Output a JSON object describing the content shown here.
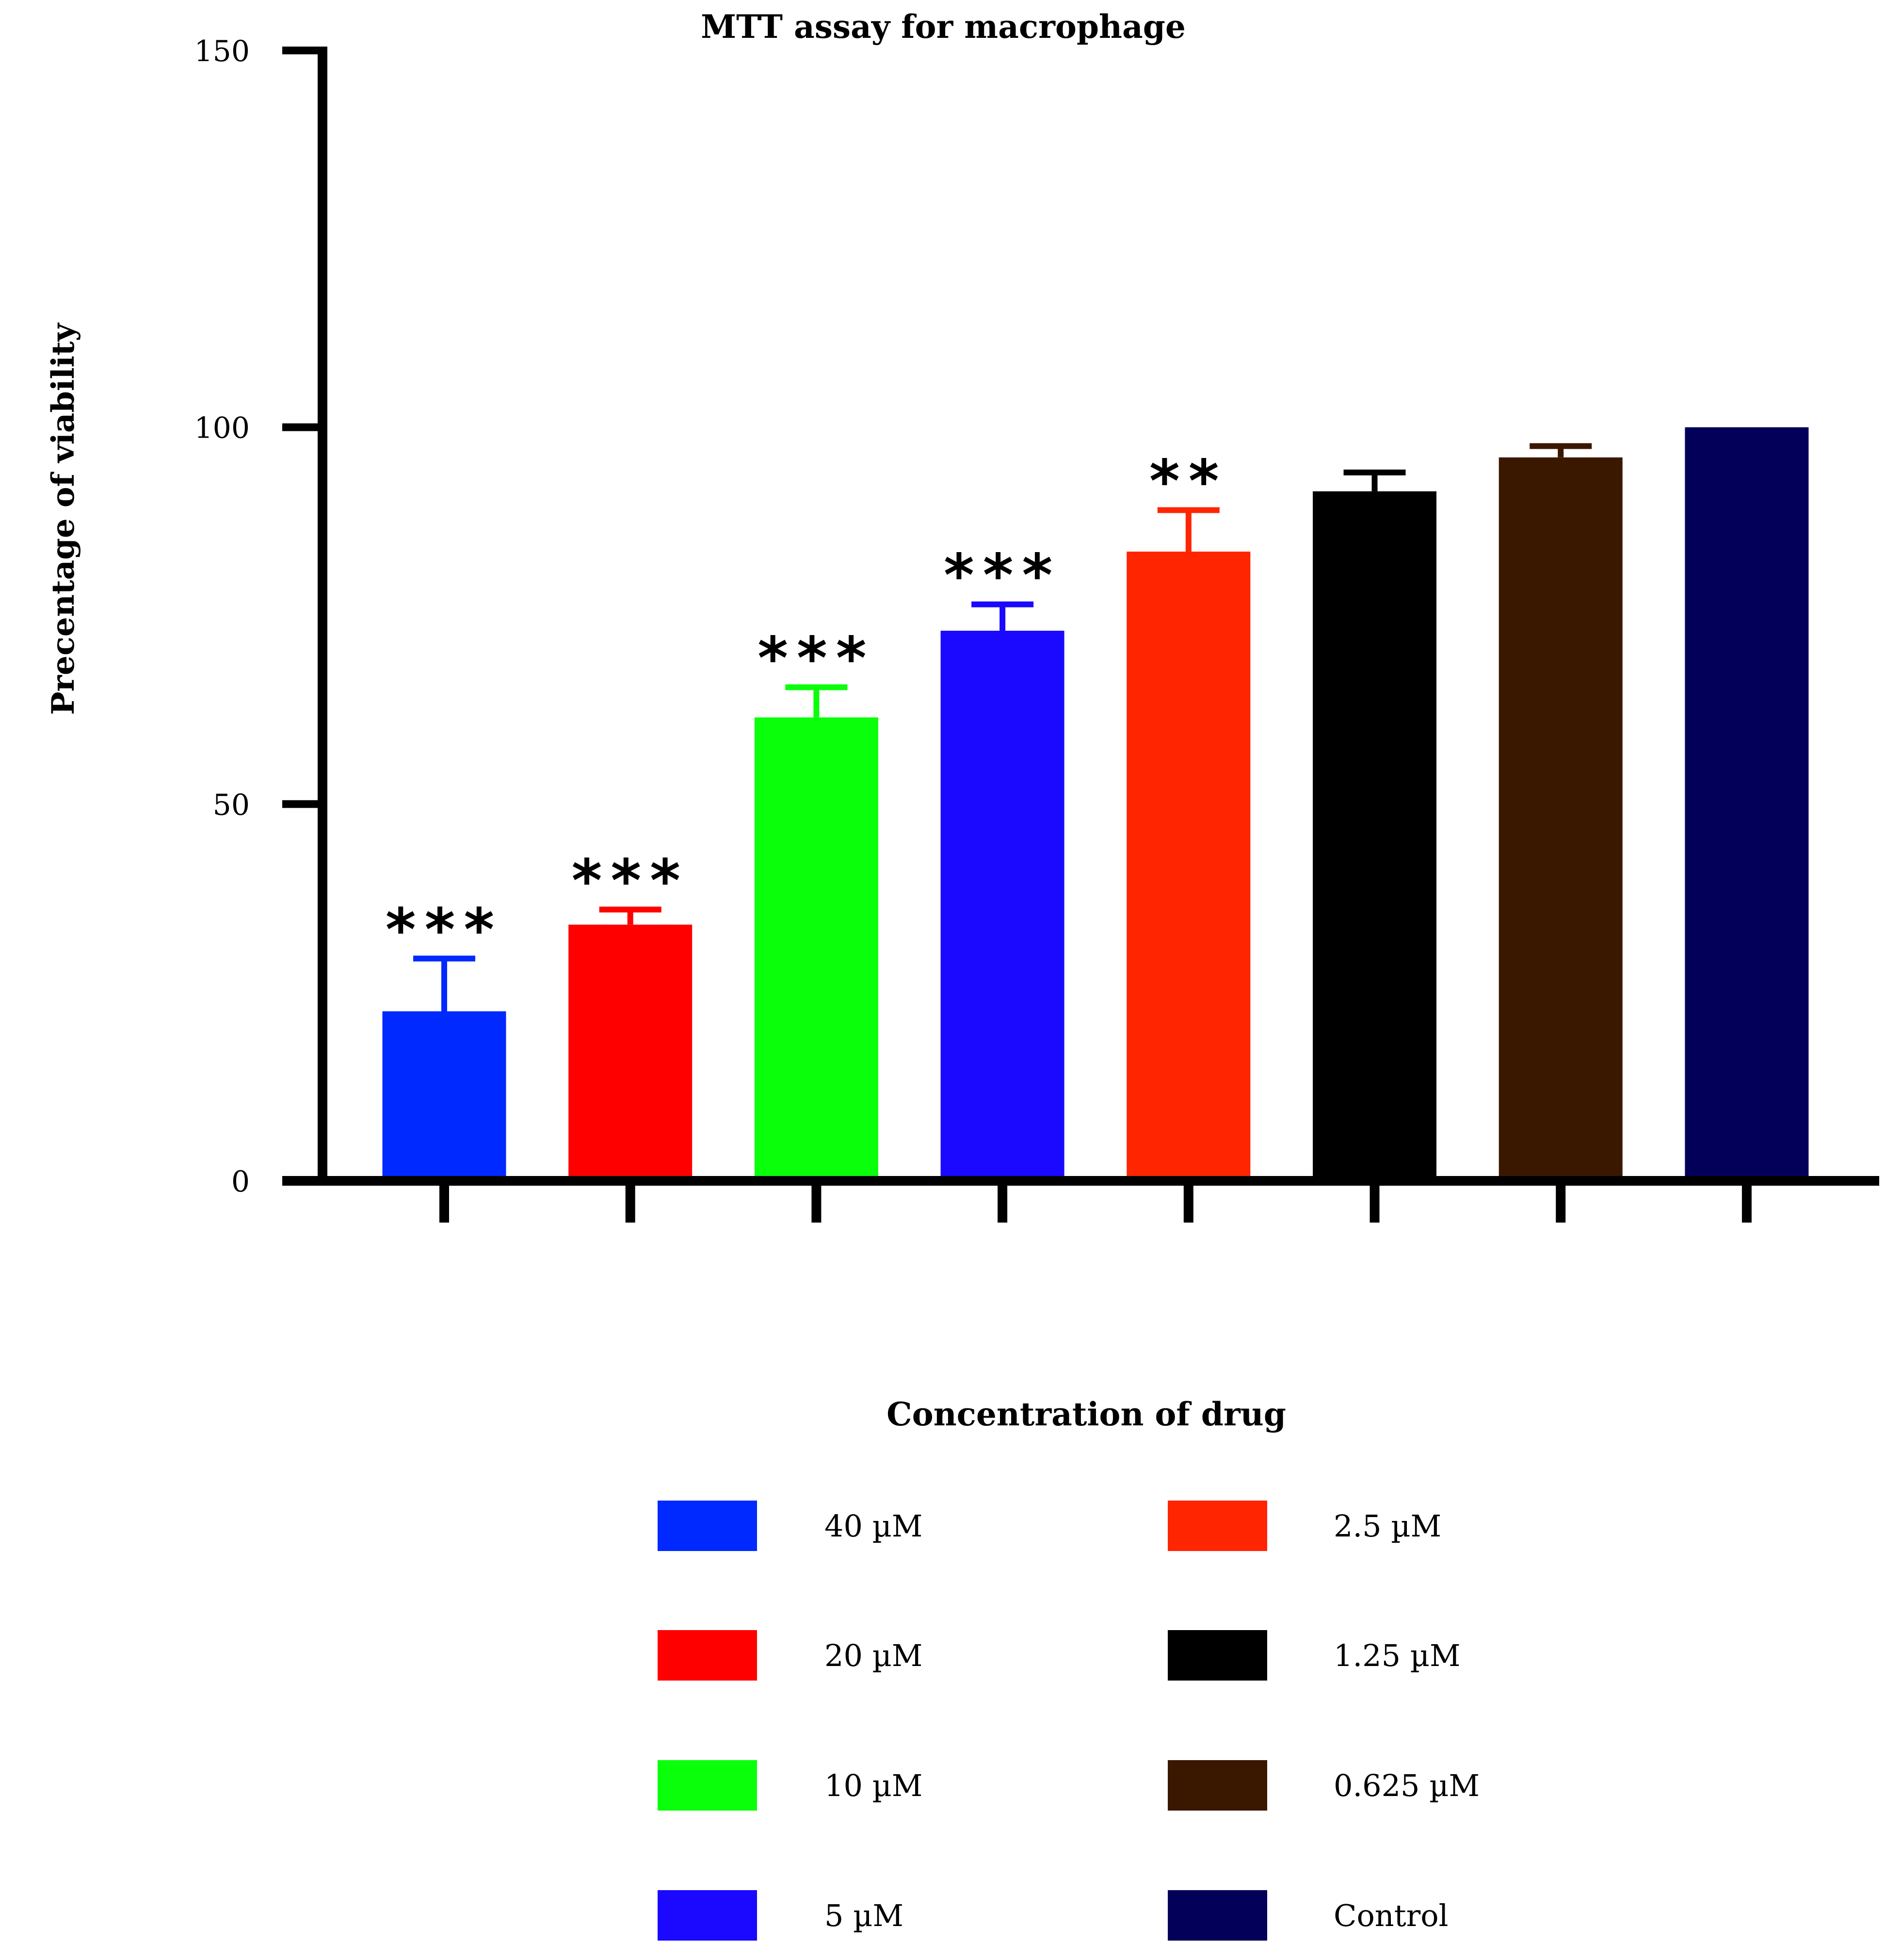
{
  "chart_data": {
    "type": "bar",
    "title": "MTT assay for macrophage",
    "xlabel": "Concentration of drug",
    "ylabel": "Precentage of viability",
    "ylim": [
      0,
      150
    ],
    "yticks": [
      "0",
      "50",
      "100",
      "150"
    ],
    "categories": [
      "40 µM",
      "20 µM",
      "10 µM",
      "5 µM",
      "2.5 µM",
      "1.25 µM",
      "0.625 µM",
      "Control"
    ],
    "values": [
      22.5,
      34,
      61.5,
      73,
      83.5,
      91.5,
      96,
      100
    ],
    "errors": [
      7,
      2,
      4,
      3.5,
      5.5,
      2.5,
      1.5,
      0
    ],
    "significance": [
      "***",
      "***",
      "***",
      "***",
      "**",
      "",
      "",
      ""
    ],
    "colors": [
      "#0029ff",
      "#ff0000",
      "#0aff0a",
      "#1a08ff",
      "#ff2500",
      "#000000",
      "#3a1800",
      "#020058"
    ],
    "legend_position": "bottom"
  }
}
